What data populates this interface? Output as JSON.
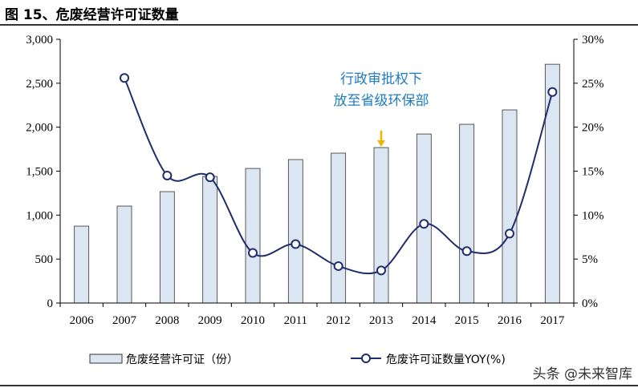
{
  "title": "图 15、危废经营许可证数量",
  "watermark": "头条 @未来智库",
  "chart_data": {
    "type": "bar+line",
    "categories": [
      "2006",
      "2007",
      "2008",
      "2009",
      "2010",
      "2011",
      "2012",
      "2013",
      "2014",
      "2015",
      "2016",
      "2017"
    ],
    "series": [
      {
        "name": "危废经营许可证（份）",
        "type": "bar",
        "axis": "left",
        "color": "#dce6f2",
        "values": [
          875,
          1103,
          1267,
          1440,
          1531,
          1632,
          1705,
          1768,
          1923,
          2033,
          2197,
          2716
        ]
      },
      {
        "name": "危废许可证数量YOY(%)",
        "type": "line",
        "axis": "right",
        "color": "#1f2d6b",
        "values": [
          null,
          25.6,
          14.5,
          14.3,
          5.7,
          6.7,
          4.2,
          3.7,
          9.0,
          5.9,
          7.9,
          24.0
        ]
      }
    ],
    "ylim_left": [
      0,
      3000
    ],
    "yticks_left": [
      "0",
      "500",
      "1,000",
      "1,500",
      "2,000",
      "2,500",
      "3,000"
    ],
    "ylim_right": [
      0,
      30
    ],
    "yticks_right": [
      "0%",
      "5%",
      "10%",
      "15%",
      "20%",
      "25%",
      "30%"
    ],
    "annotation": {
      "lines": [
        "行政审批权下",
        "放至省级环保部"
      ],
      "category": "2013",
      "arrow_color": "#f0b400"
    },
    "legend": "bottom",
    "grid": false
  }
}
